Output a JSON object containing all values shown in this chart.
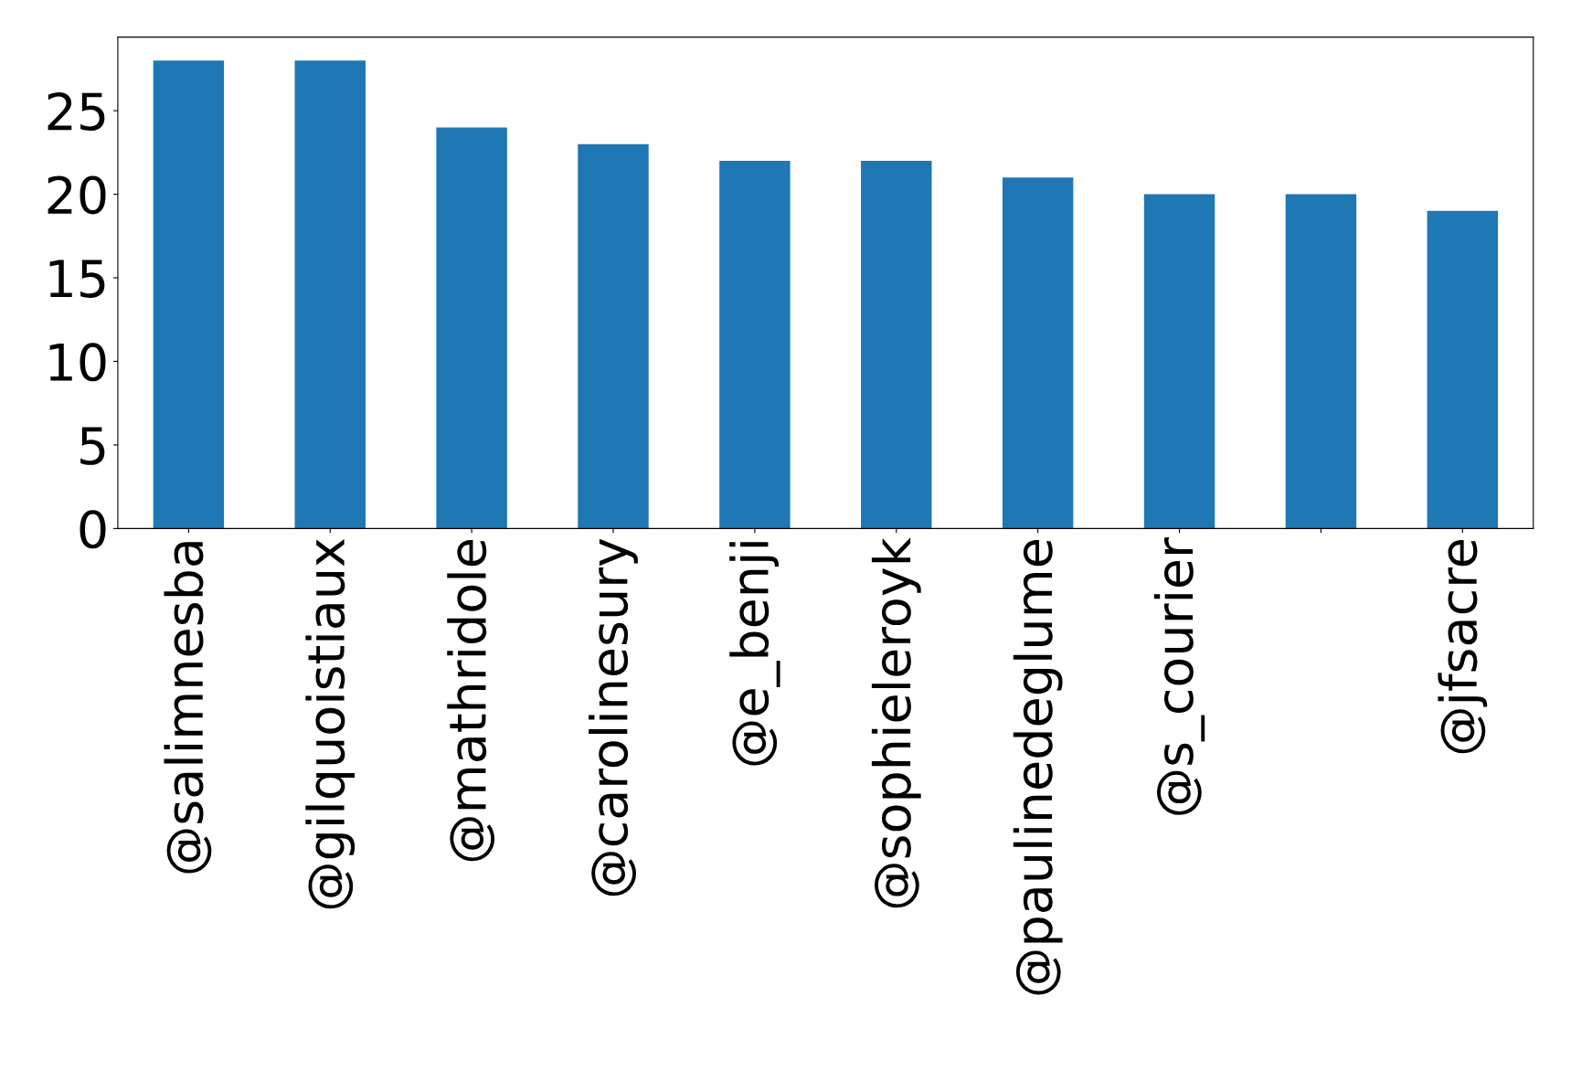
{
  "chart_data": {
    "type": "bar",
    "categories": [
      "@salimnesba",
      "@gilquoistiaux",
      "@mathridole",
      "@carolinesury",
      "@e_benji",
      "@sophieleroyk",
      "@paulinedeglume",
      "@s_courier",
      null,
      "@jfsacre"
    ],
    "values": [
      28,
      28,
      24,
      23,
      22,
      22,
      21,
      20,
      20,
      19
    ],
    "color": "#1f77b4",
    "ylim": [
      0,
      29.4
    ],
    "yticks": [
      0,
      5,
      10,
      15,
      20,
      25
    ],
    "grid": false,
    "legend": false
  }
}
